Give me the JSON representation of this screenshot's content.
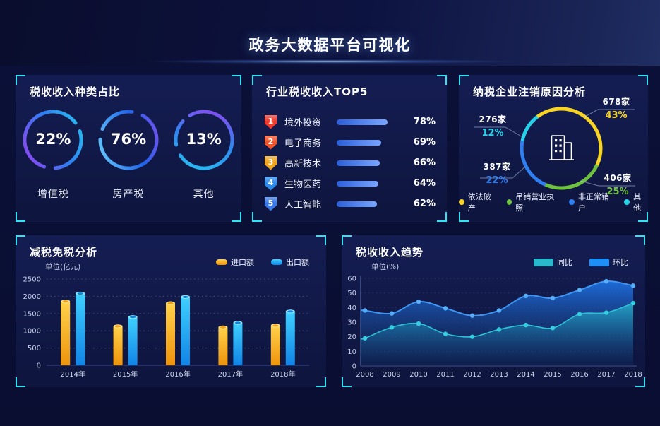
{
  "page": {
    "title": "政务大数据平台可视化"
  },
  "colors": {
    "accent_cyan": "#2fe3f2",
    "panel_bg": "#121b52",
    "top5_bar": "#5b8cff",
    "rank_colors": [
      "#f03a2c",
      "#f0562c",
      "#f0a61c",
      "#2f8ced",
      "#3a78e8"
    ]
  },
  "panels": {
    "tax_type": {
      "title": "税收收入种类占比"
    },
    "industry_top5": {
      "title": "行业税收收入TOP5"
    },
    "deregistration": {
      "title": "纳税企业注销原因分析"
    },
    "tax_reduction": {
      "title": "减税免税分析",
      "unit": "单位(亿元)"
    },
    "tax_trend": {
      "title": "税收收入趋势",
      "unit": "单位(%)"
    }
  },
  "chart_data": [
    {
      "id": "tax_type_donuts",
      "type": "donut",
      "title": "税收收入种类占比",
      "items": [
        {
          "label": "增值税",
          "value": 22,
          "display": "22%"
        },
        {
          "label": "房产税",
          "value": 76,
          "display": "76%"
        },
        {
          "label": "其他",
          "value": 13,
          "display": "13%"
        }
      ]
    },
    {
      "id": "industry_top5",
      "type": "bar",
      "orientation": "horizontal",
      "title": "行业税收收入TOP5",
      "categories": [
        "境外投资",
        "电子商务",
        "高新技术",
        "生物医药",
        "人工智能"
      ],
      "ranks": [
        "1",
        "2",
        "3",
        "4",
        "5"
      ],
      "values": [
        78,
        69,
        66,
        64,
        62
      ],
      "value_labels": [
        "78%",
        "69%",
        "66%",
        "64%",
        "62%"
      ],
      "xlim": [
        0,
        100
      ]
    },
    {
      "id": "deregistration_donut",
      "type": "pie",
      "title": "纳税企业注销原因分析",
      "center_icon": "building-icon",
      "legend_position": "bottom",
      "slices": [
        {
          "label": "依法破产",
          "count": "678家",
          "value": 43,
          "pct_label": "43%",
          "color": "#f7d325"
        },
        {
          "label": "吊销营业执照",
          "count": "406家",
          "value": 25,
          "pct_label": "25%",
          "color": "#6fc23d"
        },
        {
          "label": "非正常销户",
          "count": "387家",
          "value": 22,
          "pct_label": "22%",
          "color": "#2f7ff0"
        },
        {
          "label": "其他",
          "count": "276家",
          "value": 12,
          "pct_label": "12%",
          "color": "#26d0e6"
        }
      ]
    },
    {
      "id": "tax_reduction_bars",
      "type": "bar",
      "title": "减税免税分析",
      "ylabel": "单位(亿元)",
      "categories": [
        "2014年",
        "2015年",
        "2016年",
        "2017年",
        "2018年"
      ],
      "series": [
        {
          "name": "进口额",
          "color": "#f5a60a",
          "values": [
            1850,
            1130,
            1800,
            1100,
            1150
          ]
        },
        {
          "name": "出口额",
          "color": "#24b4f5",
          "values": [
            2080,
            1400,
            1980,
            1230,
            1560
          ]
        }
      ],
      "ylim": [
        0,
        2500
      ],
      "yticks": [
        0,
        500,
        1000,
        1500,
        2000,
        2500
      ],
      "grid": "dotted",
      "legend_position": "top-right"
    },
    {
      "id": "tax_trend_area",
      "type": "area",
      "title": "税收收入趋势",
      "ylabel": "单位(%)",
      "x": [
        "2008",
        "2009",
        "2010",
        "2011",
        "2012",
        "2013",
        "2014",
        "2015",
        "2016",
        "2017",
        "2018"
      ],
      "series": [
        {
          "name": "同比",
          "color": "#2cc3d6",
          "values": [
            19,
            26.5,
            29,
            22,
            20,
            25,
            28,
            26,
            35.5,
            36.5,
            43
          ]
        },
        {
          "name": "环比",
          "color": "#2f8ff0",
          "values": [
            38,
            36,
            44,
            39.5,
            34.5,
            38,
            48,
            46.5,
            52,
            58,
            55
          ]
        }
      ],
      "ylim": [
        0,
        60
      ],
      "yticks": [
        0,
        10,
        20,
        30,
        40,
        50,
        60
      ],
      "grid": "dotted",
      "legend_position": "top-right"
    }
  ]
}
